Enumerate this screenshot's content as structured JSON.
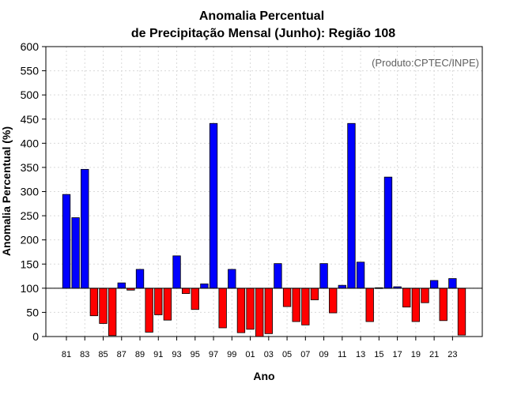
{
  "chart_data": {
    "type": "bar",
    "title_line1": "Anomalia Percentual",
    "title_line2": "de Precipitação Mensal (Junho): Região 108",
    "xlabel": "Ano",
    "ylabel": "Anomalia Percentual (%)",
    "annotation": "(Produto:CPTEC/INPE)",
    "ylim": [
      0,
      600
    ],
    "baseline": 100,
    "yticks": [
      0,
      50,
      100,
      150,
      200,
      250,
      300,
      350,
      400,
      450,
      500,
      550,
      600
    ],
    "tick_labels": [
      "81",
      "83",
      "85",
      "87",
      "89",
      "91",
      "93",
      "95",
      "97",
      "99",
      "01",
      "03",
      "05",
      "07",
      "09",
      "11",
      "13",
      "15",
      "17",
      "19",
      "21",
      "23"
    ],
    "categories": [
      "1981",
      "1982",
      "1983",
      "1984",
      "1985",
      "1986",
      "1987",
      "1988",
      "1989",
      "1990",
      "1991",
      "1992",
      "1993",
      "1994",
      "1995",
      "1996",
      "1997",
      "1998",
      "1999",
      "2000",
      "2001",
      "2002",
      "2003",
      "2004",
      "2005",
      "2006",
      "2007",
      "2008",
      "2009",
      "2010",
      "2011",
      "2012",
      "2013",
      "2014",
      "2015",
      "2016",
      "2017",
      "2018",
      "2019",
      "2020",
      "2021",
      "2022",
      "2023",
      "2024"
    ],
    "values": [
      294,
      246,
      346,
      43,
      27,
      2,
      111,
      96,
      139,
      9,
      45,
      34,
      167,
      89,
      56,
      109,
      441,
      18,
      139,
      8,
      15,
      0,
      6,
      151,
      62,
      31,
      24,
      76,
      151,
      49,
      106,
      441,
      154,
      31,
      101,
      330,
      103,
      61,
      31,
      70,
      116,
      33,
      120,
      3
    ],
    "colors": {
      "above": "#0000ff",
      "below": "#ff0000",
      "grid": "#d9d9d9",
      "axis": "#000000"
    },
    "grid": true
  }
}
